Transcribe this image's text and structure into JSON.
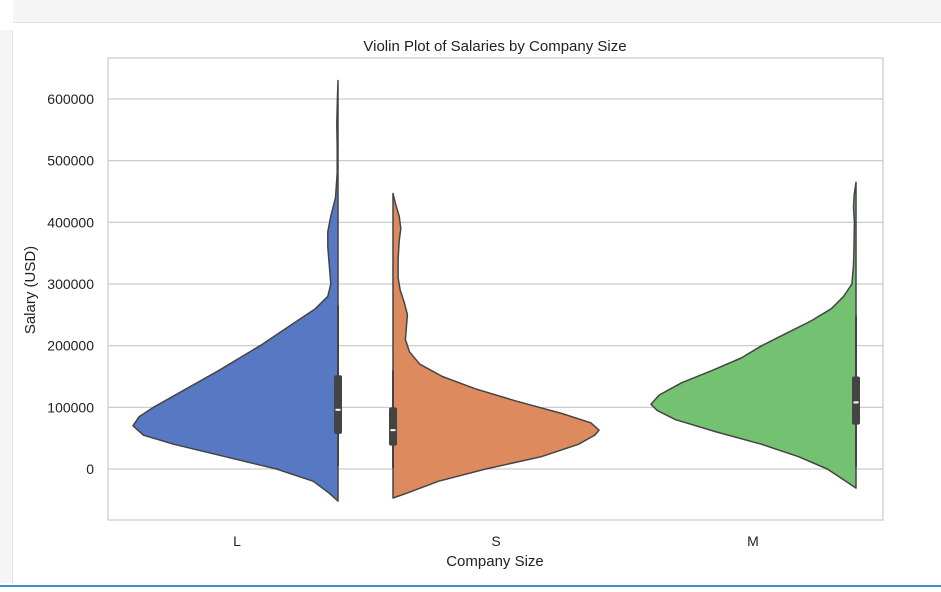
{
  "chart_data": {
    "type": "violin",
    "title": "Violin Plot of Salaries by Company Size",
    "xlabel": "Company Size",
    "ylabel": "Salary (USD)",
    "categories": [
      "L",
      "S",
      "M"
    ],
    "split": true,
    "ylim": [
      -60000,
      660000
    ],
    "yticks": [
      0,
      100000,
      200000,
      300000,
      400000,
      500000,
      600000
    ],
    "ytick_labels": [
      "0",
      "100000",
      "200000",
      "300000",
      "400000",
      "500000",
      "600000"
    ],
    "grid": "horizontal",
    "series": [
      {
        "category": "L",
        "side": "left",
        "color": "#5778c2",
        "min": -52000,
        "max": 630000,
        "box": {
          "q1": 57000,
          "median": 96000,
          "q3": 152000,
          "whisker_low": 5000,
          "whisker_high": 265000
        },
        "density": [
          [
            -52000,
            0.0
          ],
          [
            -40000,
            0.04
          ],
          [
            -20000,
            0.12
          ],
          [
            0,
            0.3
          ],
          [
            20000,
            0.55
          ],
          [
            40000,
            0.8
          ],
          [
            55000,
            0.95
          ],
          [
            70000,
            1.0
          ],
          [
            85000,
            0.97
          ],
          [
            100000,
            0.9
          ],
          [
            130000,
            0.74
          ],
          [
            160000,
            0.58
          ],
          [
            200000,
            0.38
          ],
          [
            240000,
            0.2
          ],
          [
            260000,
            0.11
          ],
          [
            280000,
            0.05
          ],
          [
            300000,
            0.035
          ],
          [
            320000,
            0.04
          ],
          [
            340000,
            0.045
          ],
          [
            360000,
            0.05
          ],
          [
            385000,
            0.05
          ],
          [
            410000,
            0.035
          ],
          [
            440000,
            0.012
          ],
          [
            480000,
            0.004
          ],
          [
            520000,
            0.004
          ],
          [
            560000,
            0.006
          ],
          [
            600000,
            0.003
          ],
          [
            630000,
            0.0
          ]
        ]
      },
      {
        "category": "S",
        "side": "right",
        "color": "#dd8a5e",
        "min": -47000,
        "max": 447000,
        "box": {
          "q1": 38000,
          "median": 63000,
          "q3": 100000,
          "whisker_low": 2000,
          "whisker_high": 160000
        },
        "density": [
          [
            -47000,
            0.0
          ],
          [
            -40000,
            0.06
          ],
          [
            -20000,
            0.22
          ],
          [
            0,
            0.45
          ],
          [
            20000,
            0.72
          ],
          [
            40000,
            0.9
          ],
          [
            55000,
            0.98
          ],
          [
            63000,
            1.0
          ],
          [
            75000,
            0.96
          ],
          [
            90000,
            0.82
          ],
          [
            110000,
            0.6
          ],
          [
            130000,
            0.4
          ],
          [
            150000,
            0.24
          ],
          [
            170000,
            0.13
          ],
          [
            190000,
            0.08
          ],
          [
            210000,
            0.06
          ],
          [
            230000,
            0.065
          ],
          [
            250000,
            0.07
          ],
          [
            270000,
            0.055
          ],
          [
            290000,
            0.035
          ],
          [
            310000,
            0.025
          ],
          [
            340000,
            0.025
          ],
          [
            370000,
            0.03
          ],
          [
            390000,
            0.038
          ],
          [
            410000,
            0.03
          ],
          [
            430000,
            0.012
          ],
          [
            447000,
            0.0
          ]
        ]
      },
      {
        "category": "M",
        "side": "left",
        "color": "#74c171",
        "min": -31000,
        "max": 465000,
        "box": {
          "q1": 72000,
          "median": 108000,
          "q3": 150000,
          "whisker_low": 3000,
          "whisker_high": 248000
        },
        "density": [
          [
            -31000,
            0.0
          ],
          [
            -20000,
            0.05
          ],
          [
            0,
            0.14
          ],
          [
            20000,
            0.28
          ],
          [
            40000,
            0.46
          ],
          [
            60000,
            0.68
          ],
          [
            80000,
            0.88
          ],
          [
            95000,
            0.97
          ],
          [
            105000,
            1.0
          ],
          [
            120000,
            0.96
          ],
          [
            140000,
            0.85
          ],
          [
            160000,
            0.7
          ],
          [
            180000,
            0.56
          ],
          [
            200000,
            0.46
          ],
          [
            220000,
            0.34
          ],
          [
            240000,
            0.22
          ],
          [
            260000,
            0.12
          ],
          [
            280000,
            0.06
          ],
          [
            300000,
            0.02
          ],
          [
            330000,
            0.012
          ],
          [
            360000,
            0.01
          ],
          [
            400000,
            0.008
          ],
          [
            425000,
            0.012
          ],
          [
            445000,
            0.009
          ],
          [
            465000,
            0.0
          ]
        ]
      }
    ]
  }
}
